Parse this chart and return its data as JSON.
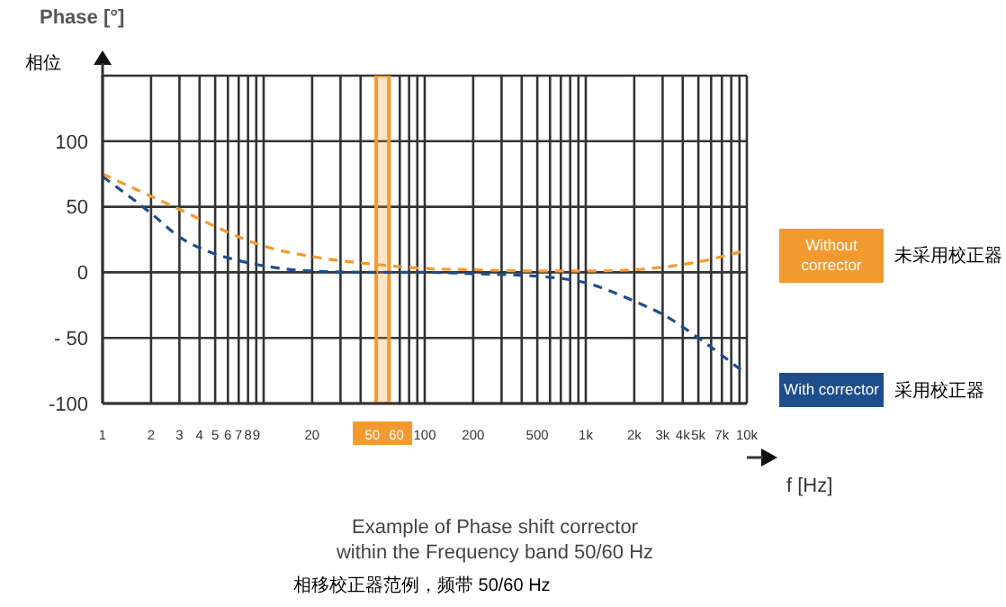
{
  "chart_data": {
    "type": "line",
    "title": "Example of Phase shift corrector\nwithin the Frequency band 50/60 Hz",
    "subtitle": "相移校正器范例，频带 50/60 Hz",
    "xlabel": "f [Hz]",
    "ylabel": "Phase [°]",
    "log": "x",
    "grid": true,
    "legend": "right",
    "line_style": "dashed",
    "marker": "none",
    "annotations": [
      "相位",
      "未采用校正器",
      "采用校正器"
    ],
    "x": [
      1,
      2,
      3,
      5,
      7,
      10,
      20,
      50,
      100,
      200,
      500,
      1000,
      2000,
      3000,
      5000,
      10000
    ],
    "series": [
      {
        "name": "Without corrector",
        "color": "#f39a2e",
        "values": [
          75,
          58,
          48,
          35,
          27,
          20,
          12,
          6,
          3,
          2,
          1,
          1,
          2,
          4,
          8,
          17
        ]
      },
      {
        "name": "With corrector",
        "color": "#1e4d8c",
        "values": [
          73,
          45,
          27,
          14,
          9,
          5,
          1,
          0,
          0,
          -1,
          -3,
          -8,
          -22,
          -32,
          -50,
          -78
        ]
      }
    ],
    "xlim": [
      1,
      10000
    ],
    "ylim": [
      -100,
      150
    ],
    "yticks": [
      {
        "value": -100,
        "label": "-100"
      },
      {
        "value": -50,
        "label": "- 50"
      },
      0,
      50,
      100
    ],
    "xticks": [
      1,
      2,
      3,
      4,
      5,
      6,
      7,
      8,
      9,
      {
        "value": 10,
        "label": null
      },
      20,
      {
        "value": 30,
        "label": null
      },
      {
        "value": 40,
        "label": null
      },
      50,
      60,
      {
        "value": 70,
        "label": null
      },
      {
        "value": 80,
        "label": null
      },
      {
        "value": 90,
        "label": null
      },
      100,
      200,
      {
        "value": 300,
        "label": null
      },
      {
        "value": 400,
        "label": null
      },
      500,
      {
        "value": 600,
        "label": null
      },
      {
        "value": 700,
        "label": null
      },
      {
        "value": 800,
        "label": null
      },
      {
        "value": 900,
        "label": null
      },
      {
        "value": 1000,
        "label": "1k"
      },
      {
        "value": 2000,
        "label": "2k"
      },
      {
        "value": 3000,
        "label": "3k"
      },
      {
        "value": 4000,
        "label": "4k"
      },
      {
        "value": 5000,
        "label": "5k"
      },
      {
        "value": 6000,
        "label": null
      },
      {
        "value": 7000,
        "label": "7k"
      },
      {
        "value": 8000,
        "label": null
      },
      {
        "value": 9000,
        "label": null
      },
      {
        "value": 10000,
        "label": "10k"
      }
    ],
    "bands": [
      {
        "axis": "x",
        "from": 50,
        "to": 60,
        "color": "#f39a2e"
      }
    ]
  }
}
